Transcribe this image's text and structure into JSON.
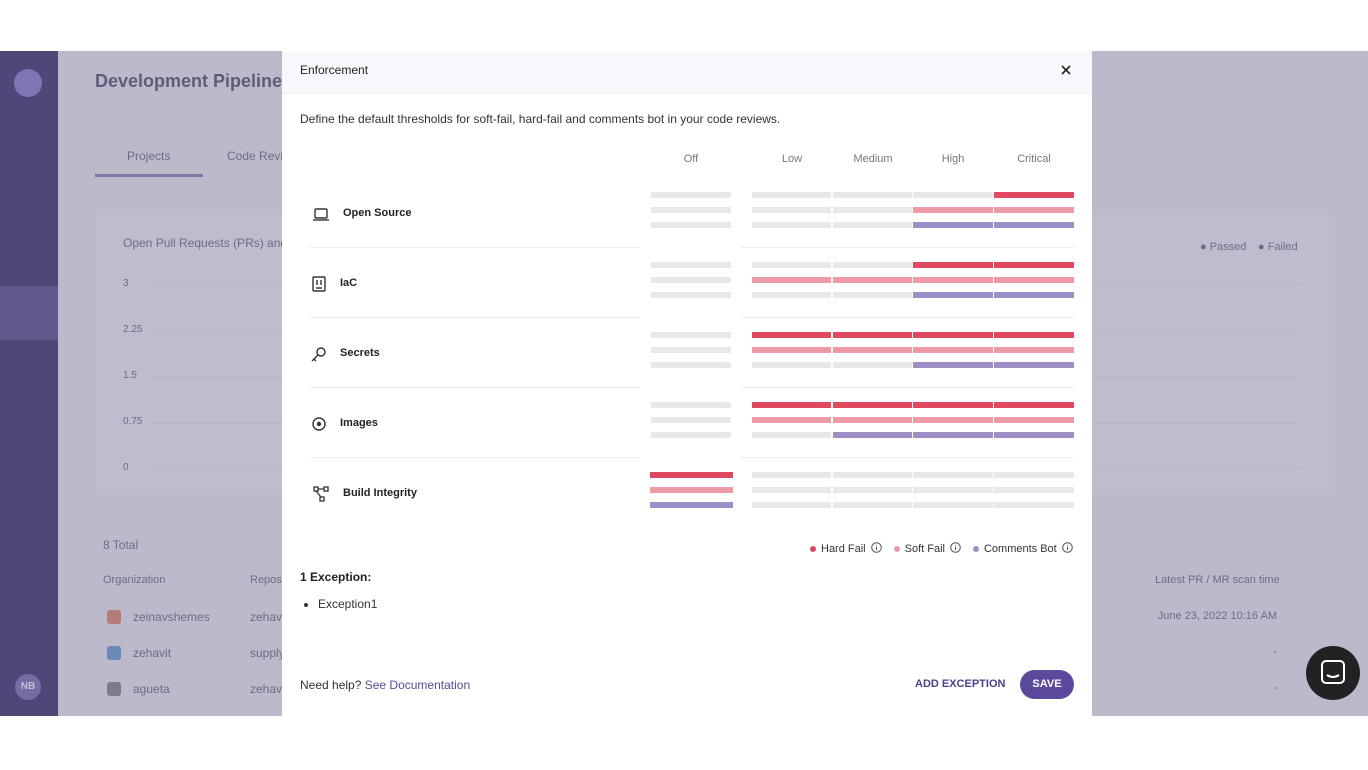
{
  "background": {
    "page_title": "Development Pipelines",
    "tabs": [
      "Projects",
      "Code Revi"
    ],
    "chart_title": "Open Pull Requests (PRs) and",
    "chart_y_labels": [
      "3",
      "2.25",
      "1.5",
      "0.75",
      "0"
    ],
    "chart_legend": [
      "Passed",
      "Failed"
    ],
    "total": "8 Total",
    "columns": [
      "Organization",
      "Reposi",
      "Latest PR / MR scan time"
    ],
    "rows": [
      [
        "zeinavshemes",
        "zehavi",
        "June 23, 2022 10:16 AM"
      ],
      [
        "zehavit",
        "supply",
        "-"
      ],
      [
        "agueta",
        "zehav",
        "-"
      ]
    ],
    "avatar": "NB"
  },
  "modal": {
    "title": "Enforcement",
    "description": "Define the default thresholds for soft-fail, hard-fail and comments bot in your code reviews.",
    "levels": [
      "Off",
      "Low",
      "Medium",
      "High",
      "Critical"
    ],
    "rows": [
      {
        "label": "Open Source",
        "active": [
          [
            false,
            false,
            false,
            false,
            true
          ],
          [
            false,
            false,
            false,
            true,
            true
          ],
          [
            false,
            false,
            false,
            true,
            true
          ]
        ]
      },
      {
        "label": "IaC",
        "active": [
          [
            false,
            false,
            false,
            true,
            true
          ],
          [
            false,
            true,
            true,
            true,
            true
          ],
          [
            false,
            false,
            false,
            true,
            true
          ]
        ]
      },
      {
        "label": "Secrets",
        "active": [
          [
            false,
            true,
            true,
            true,
            true
          ],
          [
            false,
            true,
            true,
            true,
            true
          ],
          [
            false,
            false,
            false,
            true,
            true
          ]
        ]
      },
      {
        "label": "Images",
        "active": [
          [
            false,
            true,
            true,
            true,
            true
          ],
          [
            false,
            true,
            true,
            true,
            true
          ],
          [
            false,
            false,
            true,
            true,
            true
          ]
        ]
      },
      {
        "label": "Build Integrity",
        "active": [
          [
            true,
            false,
            false,
            false,
            false
          ],
          [
            true,
            false,
            false,
            false,
            false
          ],
          [
            true,
            false,
            false,
            false,
            false
          ]
        ]
      }
    ],
    "legend": [
      {
        "name": "Hard Fail",
        "color": "#e0485f"
      },
      {
        "name": "Soft Fail",
        "color": "#ec9aa6"
      },
      {
        "name": "Comments Bot",
        "color": "#9d8fc8"
      }
    ],
    "exceptions_title": "1 Exception:",
    "exceptions": [
      "Exception1"
    ],
    "help": "Need help?",
    "help_link": "See Documentation",
    "add_button": "ADD EXCEPTION",
    "save_button": "SAVE"
  }
}
